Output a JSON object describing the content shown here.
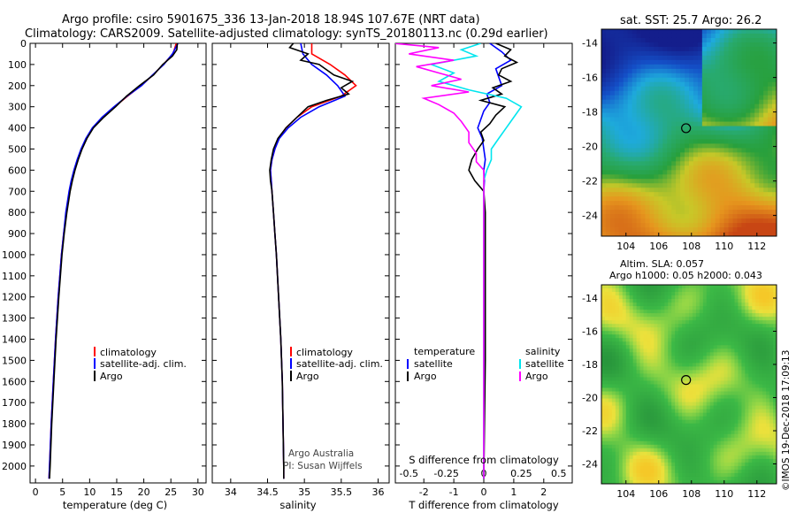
{
  "title": {
    "line1": "Argo profile: csiro 5901675_336 13-Jan-2018 18.94S 107.67E (NRT data)",
    "line2": "Climatology: CARS2009. Satellite-adjusted climatology: synTS_20180113.nc (0.29d earlier)"
  },
  "colors": {
    "climatology": "#ff0000",
    "satellite": "#0000ff",
    "argo": "#000000",
    "sat_s": "#00e5ee",
    "argo_s": "#ff00ff"
  },
  "chart_data": [
    {
      "type": "line",
      "panel": "temperature",
      "xlabel": "temperature (deg C)",
      "ylabel": "depth",
      "xlim": [
        -1,
        31.5
      ],
      "ylim": [
        2080,
        0
      ],
      "xticks": [
        "0",
        "5",
        "10",
        "15",
        "20",
        "25",
        "30"
      ],
      "yticks": [
        "0",
        "100",
        "200",
        "300",
        "400",
        "500",
        "600",
        "700",
        "800",
        "900",
        "1000",
        "1100",
        "1200",
        "1300",
        "1400",
        "1500",
        "1600",
        "1700",
        "1800",
        "1900",
        "2000"
      ],
      "legend": [
        "climatology",
        "satellite-adj. clim.",
        "Argo"
      ],
      "series": [
        {
          "name": "climatology",
          "depth": [
            0,
            50,
            100,
            150,
            200,
            250,
            300,
            350,
            400,
            450,
            500,
            550,
            600,
            650,
            700,
            800,
            900,
            1000,
            1200,
            1400,
            1600,
            1800,
            2000,
            2060
          ],
          "values": [
            26.0,
            25.4,
            23.6,
            21.7,
            19.5,
            17.0,
            14.6,
            12.4,
            10.6,
            9.4,
            8.5,
            7.8,
            7.2,
            6.7,
            6.3,
            5.7,
            5.2,
            4.8,
            4.2,
            3.7,
            3.3,
            2.9,
            2.6,
            2.5
          ]
        },
        {
          "name": "satellite-adj. clim.",
          "depth": [
            0,
            50,
            100,
            150,
            200,
            250,
            300,
            350,
            400,
            450,
            500,
            550,
            600,
            650,
            700,
            800,
            900,
            1000,
            1200,
            1400,
            1600,
            1800,
            2000,
            2060
          ],
          "values": [
            26.3,
            25.3,
            23.7,
            21.6,
            19.6,
            16.9,
            14.5,
            12.3,
            10.5,
            9.3,
            8.4,
            7.7,
            7.1,
            6.6,
            6.2,
            5.6,
            5.2,
            4.8,
            4.2,
            3.7,
            3.3,
            2.9,
            2.6,
            2.5
          ]
        },
        {
          "name": "Argo",
          "depth": [
            0,
            30,
            60,
            100,
            150,
            200,
            250,
            300,
            350,
            400,
            450,
            500,
            550,
            600,
            650,
            700,
            800,
            900,
            1000,
            1200,
            1400,
            1600,
            1800,
            2000,
            2060
          ],
          "values": [
            26.2,
            26.1,
            25.3,
            23.5,
            21.8,
            19.2,
            16.8,
            14.8,
            12.6,
            10.7,
            9.5,
            8.6,
            7.9,
            7.3,
            6.8,
            6.4,
            5.8,
            5.3,
            4.9,
            4.3,
            3.8,
            3.4,
            3.0,
            2.7,
            2.6
          ]
        }
      ]
    },
    {
      "type": "line",
      "panel": "salinity",
      "xlabel": "salinity",
      "xlim": [
        33.75,
        36.15
      ],
      "xticks": [
        "34",
        "34.5",
        "35",
        "35.5",
        "36"
      ],
      "legend": [
        "climatology",
        "satellite-adj. clim.",
        "Argo"
      ],
      "series": [
        {
          "name": "climatology",
          "depth": [
            0,
            50,
            100,
            150,
            200,
            250,
            300,
            350,
            400,
            450,
            500,
            550,
            600,
            650,
            700,
            800,
            900,
            1000,
            1200,
            1400,
            1600,
            1800,
            2000,
            2060
          ],
          "values": [
            35.1,
            35.1,
            35.35,
            35.55,
            35.7,
            35.5,
            35.1,
            34.9,
            34.75,
            34.65,
            34.6,
            34.56,
            34.54,
            34.55,
            34.56,
            34.58,
            34.6,
            34.62,
            34.65,
            34.68,
            34.7,
            34.71,
            34.72,
            34.72
          ]
        },
        {
          "name": "satellite-adj. clim.",
          "depth": [
            0,
            50,
            100,
            150,
            200,
            250,
            300,
            350,
            400,
            450,
            500,
            550,
            600,
            650,
            700,
            800,
            900,
            1000,
            1200,
            1400,
            1600,
            1800,
            2000,
            2060
          ],
          "values": [
            34.95,
            34.98,
            35.1,
            35.3,
            35.45,
            35.55,
            35.2,
            34.95,
            34.78,
            34.66,
            34.6,
            34.56,
            34.54,
            34.55,
            34.56,
            34.58,
            34.6,
            34.62,
            34.65,
            34.68,
            34.7,
            34.71,
            34.72,
            34.72
          ]
        },
        {
          "name": "Argo",
          "depth": [
            0,
            20,
            50,
            80,
            100,
            150,
            180,
            210,
            240,
            270,
            300,
            350,
            400,
            450,
            500,
            550,
            600,
            650,
            700,
            800,
            900,
            1000,
            1200,
            1400,
            1600,
            1800,
            2000,
            2060
          ],
          "values": [
            34.85,
            34.8,
            35.05,
            34.95,
            35.2,
            35.4,
            35.65,
            35.5,
            35.6,
            35.3,
            35.05,
            34.9,
            34.75,
            34.64,
            34.58,
            34.55,
            34.53,
            34.54,
            34.56,
            34.58,
            34.6,
            34.62,
            34.65,
            34.68,
            34.7,
            34.71,
            34.72,
            34.72
          ]
        }
      ],
      "annotation": [
        "Argo Australia",
        "PI: Susan Wijffels"
      ]
    },
    {
      "type": "line",
      "panel": "differences",
      "xlabel": "T difference from climatology",
      "xlabel2": "S difference from climatology",
      "xlim": [
        -2.95,
        2.95
      ],
      "xticks": [
        "-2",
        "-1",
        "0",
        "1",
        "2"
      ],
      "xticks2": [
        "-0.5",
        "-0.25",
        "0",
        "0.25",
        "0.5"
      ],
      "legend_left_title": "temperature",
      "legend_right_title": "salinity",
      "legend_left": [
        "satellite",
        "Argo"
      ],
      "legend_right": [
        "satellite",
        "Argo"
      ],
      "series": [
        {
          "name": "T satellite",
          "depth": [
            0,
            40,
            80,
            120,
            160,
            200,
            240,
            280,
            320,
            360,
            400,
            450,
            500,
            550,
            600,
            650,
            700,
            800,
            1000,
            1500,
            2060
          ],
          "values": [
            0.2,
            0.6,
            0.9,
            0.4,
            0.5,
            0.6,
            0.1,
            0.2,
            0.0,
            -0.1,
            -0.2,
            -0.05,
            0.0,
            0.05,
            0.0,
            0.02,
            0.0,
            0.0,
            0.0,
            0.0,
            0.0
          ]
        },
        {
          "name": "T Argo",
          "depth": [
            0,
            30,
            60,
            90,
            120,
            150,
            180,
            210,
            240,
            270,
            300,
            340,
            380,
            420,
            460,
            500,
            550,
            600,
            650,
            700,
            800,
            1000,
            1500,
            2060
          ],
          "values": [
            0.4,
            0.9,
            0.7,
            1.1,
            0.6,
            0.5,
            0.9,
            0.3,
            0.6,
            -0.1,
            0.7,
            0.4,
            0.2,
            -0.1,
            0.0,
            -0.2,
            -0.4,
            -0.5,
            -0.3,
            0.0,
            0.05,
            0.05,
            0.05,
            0.0
          ]
        },
        {
          "name": "S satellite",
          "depth": [
            0,
            30,
            60,
            100,
            140,
            180,
            220,
            260,
            300,
            350,
            400,
            450,
            500,
            550,
            600,
            650,
            700,
            800,
            1000,
            1500,
            2060
          ],
          "values": [
            -0.02,
            -0.15,
            -0.05,
            -0.35,
            -0.2,
            -0.3,
            -0.1,
            0.15,
            0.25,
            0.2,
            0.15,
            0.1,
            0.05,
            0.05,
            0.02,
            0.0,
            0.0,
            0.0,
            0.0,
            0.0,
            0.0
          ]
        },
        {
          "name": "S Argo",
          "depth": [
            0,
            20,
            50,
            80,
            110,
            140,
            170,
            200,
            230,
            260,
            290,
            330,
            370,
            420,
            470,
            520,
            560,
            600,
            650,
            700,
            800,
            1000,
            1500,
            2060
          ],
          "values": [
            -0.6,
            -0.3,
            -0.5,
            -0.2,
            -0.45,
            -0.3,
            -0.15,
            -0.35,
            -0.1,
            -0.4,
            -0.3,
            -0.2,
            -0.15,
            -0.1,
            -0.1,
            -0.05,
            -0.05,
            0.0,
            0.0,
            0.0,
            0.0,
            0.0,
            0.0,
            0.0
          ]
        }
      ]
    },
    {
      "type": "heatmap",
      "panel": "sst_map",
      "title": "sat. SST: 25.7 Argo: 26.2",
      "xlim": [
        102.5,
        113.2
      ],
      "ylim": [
        -25.2,
        -13.2
      ],
      "xticks": [
        "104",
        "106",
        "108",
        "110",
        "112"
      ],
      "yticks": [
        "-14",
        "-16",
        "-18",
        "-20",
        "-22",
        "-24"
      ],
      "marker": {
        "lon": 107.67,
        "lat": -18.94
      }
    },
    {
      "type": "heatmap",
      "panel": "sla_map",
      "title": "Altim. SLA: 0.057",
      "subtitle": "Argo h1000: 0.05 h2000: 0.043",
      "xlim": [
        102.5,
        113.2
      ],
      "ylim": [
        -25.2,
        -13.2
      ],
      "xticks": [
        "104",
        "106",
        "108",
        "110",
        "112"
      ],
      "yticks": [
        "-14",
        "-16",
        "-18",
        "-20",
        "-22",
        "-24"
      ],
      "marker": {
        "lon": 107.67,
        "lat": -18.94
      }
    }
  ],
  "credit": "©IMOS 19-Dec-2018 17:09:13"
}
